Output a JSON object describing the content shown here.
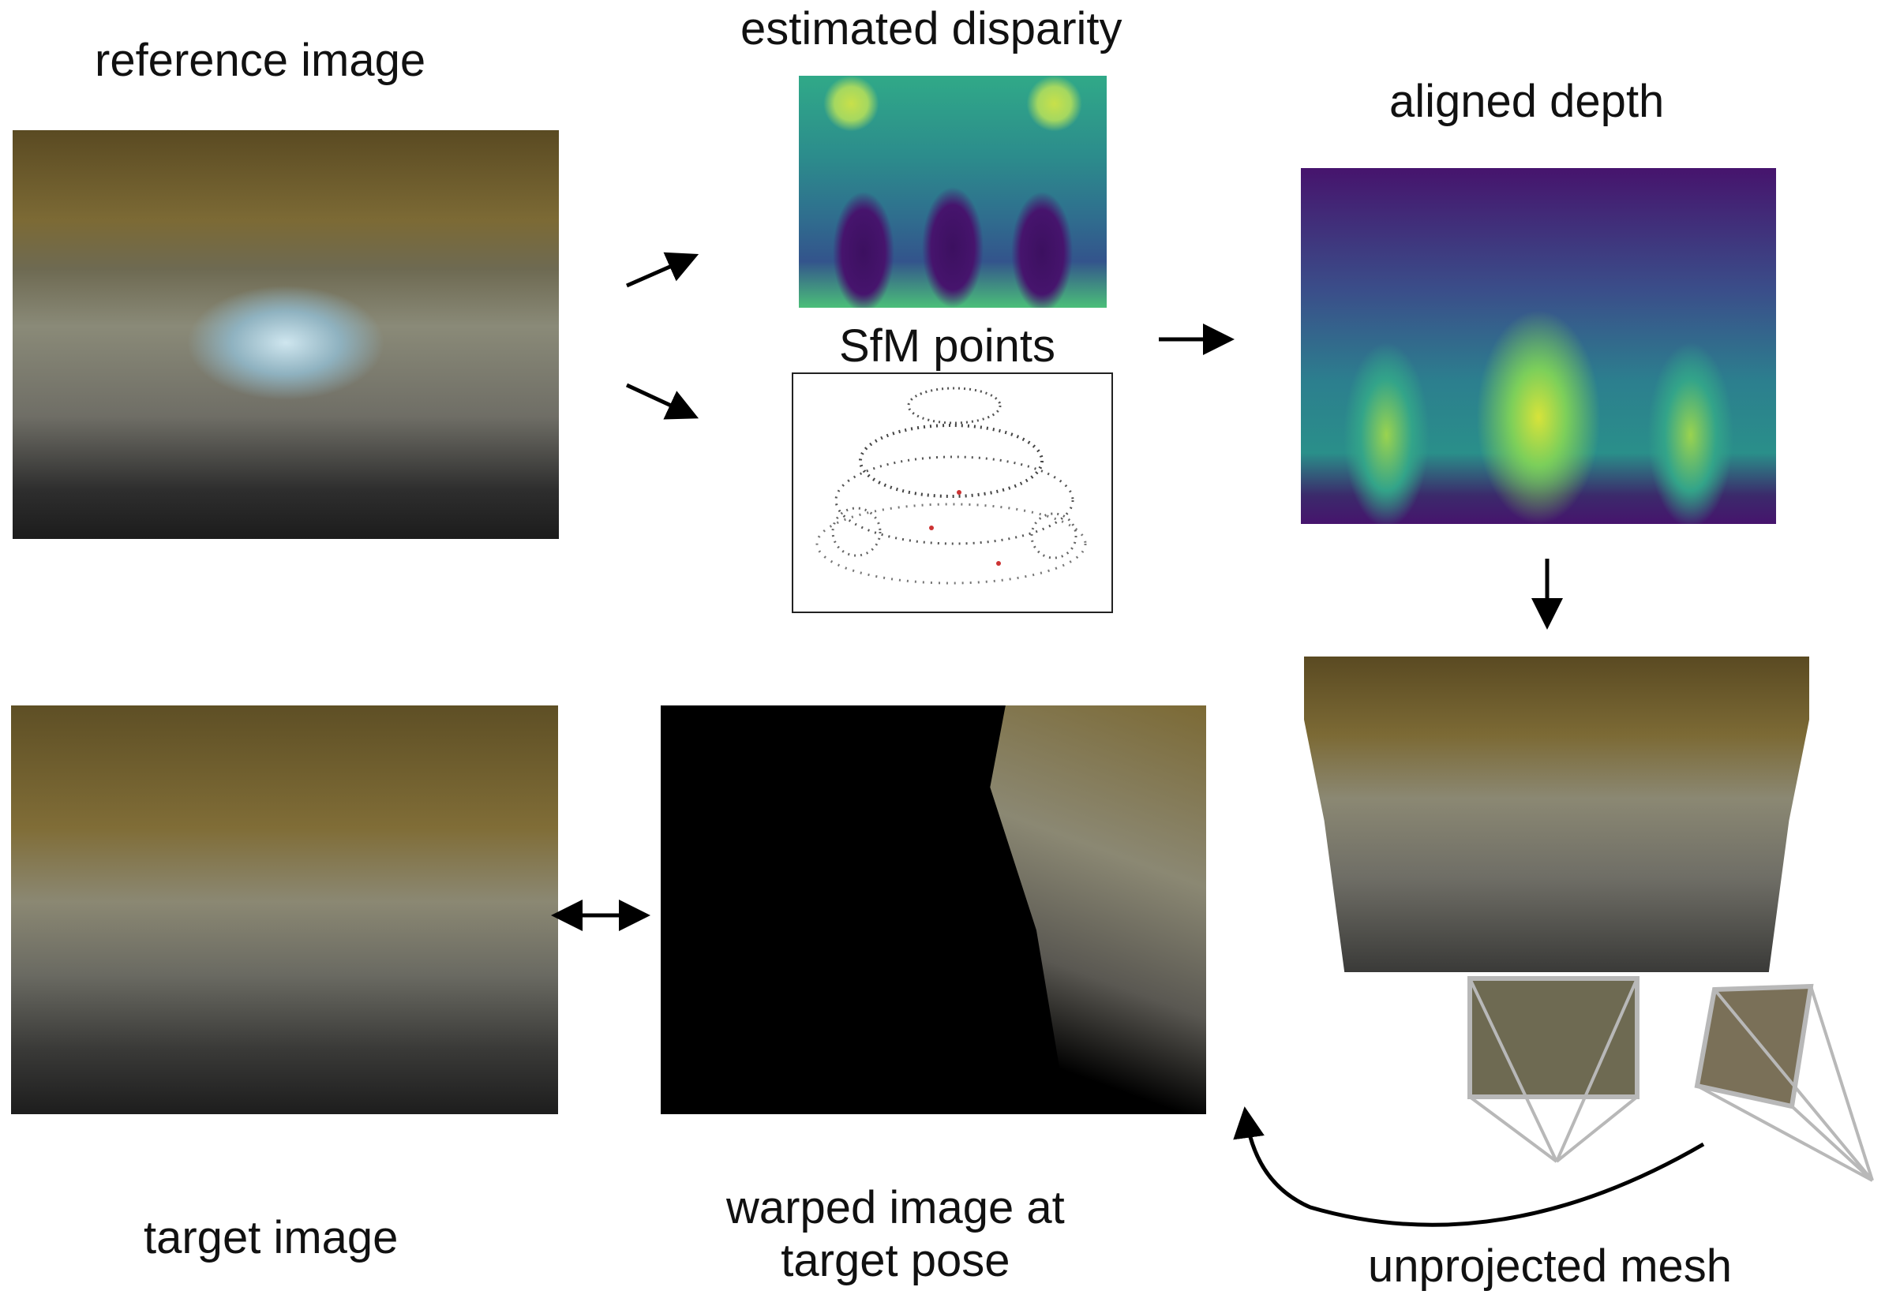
{
  "labels": {
    "reference_image": "reference image",
    "estimated_disparity": "estimated disparity",
    "sfm_points": "SfM points",
    "aligned_depth": "aligned depth",
    "unprojected_mesh": "unprojected mesh",
    "warped_image_line1": "warped image at",
    "warped_image_line2": "target pose",
    "target_image": "target image"
  },
  "colors": {
    "arrow": "#000000",
    "camera_frustum": "#b8b8b8",
    "panel_border": "#222222"
  }
}
